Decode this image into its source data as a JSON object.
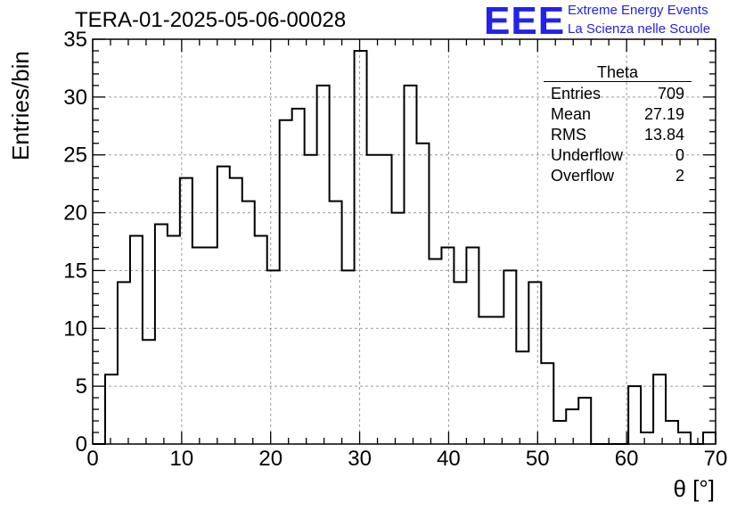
{
  "header": {
    "title": "TERA-01-2025-05-06-00028",
    "logo_text": "EEE",
    "logo_line1": "Extreme Energy Events",
    "logo_line2": "La Scienza nelle Scuole",
    "logo_color": "#2222ee"
  },
  "stats": {
    "title": "Theta",
    "rows": [
      {
        "label": "Entries",
        "value": "709"
      },
      {
        "label": "Mean",
        "value": "27.19"
      },
      {
        "label": "RMS",
        "value": "13.84"
      },
      {
        "label": "Underflow",
        "value": "0"
      },
      {
        "label": "Overflow",
        "value": "2"
      }
    ]
  },
  "chart_data": {
    "type": "bar",
    "style": "histogram-step",
    "xlabel": "θ [°]",
    "ylabel": "Entries/bin",
    "xlim": [
      0,
      70
    ],
    "ylim": [
      0,
      35
    ],
    "xticks": [
      0,
      10,
      20,
      30,
      40,
      50,
      60,
      70
    ],
    "yticks": [
      0,
      5,
      10,
      15,
      20,
      25,
      30,
      35
    ],
    "grid": true,
    "bin_edges": [
      0,
      1.4,
      2.8,
      4.2,
      5.6,
      7.0,
      8.4,
      9.8,
      11.2,
      12.6,
      14.0,
      15.4,
      16.8,
      18.2,
      19.6,
      21.0,
      22.4,
      23.8,
      25.2,
      26.6,
      28.0,
      29.4,
      30.8,
      32.2,
      33.6,
      35.0,
      36.4,
      37.8,
      39.2,
      40.6,
      42.0,
      43.4,
      44.8,
      46.2,
      47.6,
      49.0,
      50.4,
      51.8,
      53.2,
      54.6,
      56.0,
      57.4,
      58.8,
      60.2,
      61.6,
      63.0,
      64.4,
      65.8,
      67.2,
      68.6,
      70.0
    ],
    "values": [
      0,
      6,
      14,
      18,
      9,
      19,
      18,
      23,
      17,
      17,
      24,
      23,
      21,
      18,
      15,
      28,
      29,
      25,
      31,
      21,
      15,
      34,
      25,
      25,
      20,
      31,
      26,
      16,
      17,
      14,
      17,
      11,
      11,
      15,
      8,
      14,
      7,
      2,
      3,
      4,
      0,
      0,
      0,
      5,
      1,
      6,
      2,
      1,
      0,
      1
    ]
  }
}
